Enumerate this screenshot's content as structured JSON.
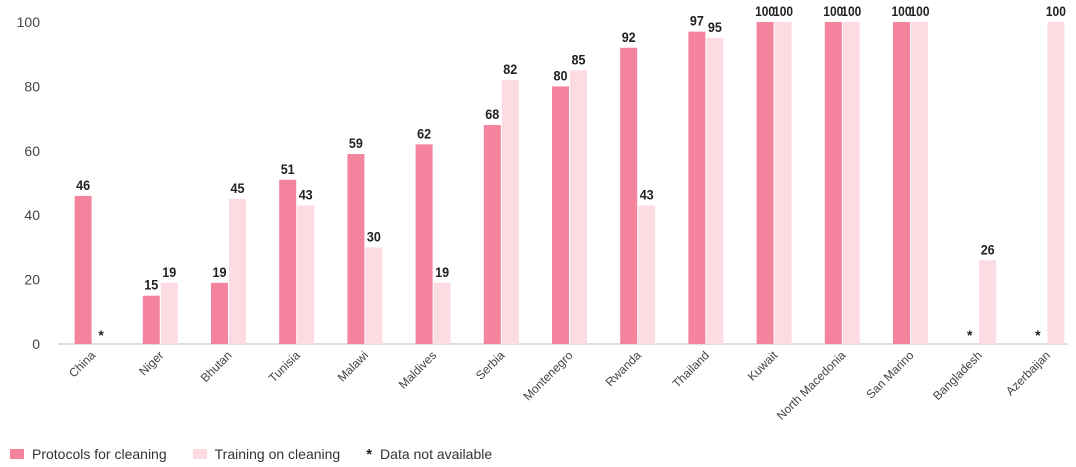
{
  "chart_data": {
    "type": "bar",
    "categories": [
      "China",
      "Niger",
      "Bhutan",
      "Tunisia",
      "Malawi",
      "Maldives",
      "Serbia",
      "Montenegro",
      "Rwanda",
      "Thailand",
      "Kuwait",
      "North Macedonia",
      "San Marino",
      "Bangladesh",
      "Azerbaijan"
    ],
    "series": [
      {
        "name": "Protocols for cleaning",
        "color": "#f4849e",
        "values": [
          46,
          15,
          19,
          51,
          59,
          62,
          68,
          80,
          92,
          97,
          100,
          100,
          100,
          null,
          null
        ]
      },
      {
        "name": "Training on cleaning",
        "color": "#fddbe2",
        "values": [
          null,
          19,
          45,
          43,
          30,
          19,
          82,
          85,
          43,
          95,
          100,
          100,
          100,
          26,
          100
        ]
      }
    ],
    "missing_marker": "*",
    "ylim": [
      0,
      100
    ],
    "yticks": [
      0,
      20,
      40,
      60,
      80,
      100
    ],
    "grid": false,
    "legend_position": "bottom-left"
  },
  "legend": {
    "protocols_label": "Protocols for cleaning",
    "training_label": "Training on cleaning",
    "na_symbol": "*",
    "na_label": "Data not available"
  }
}
